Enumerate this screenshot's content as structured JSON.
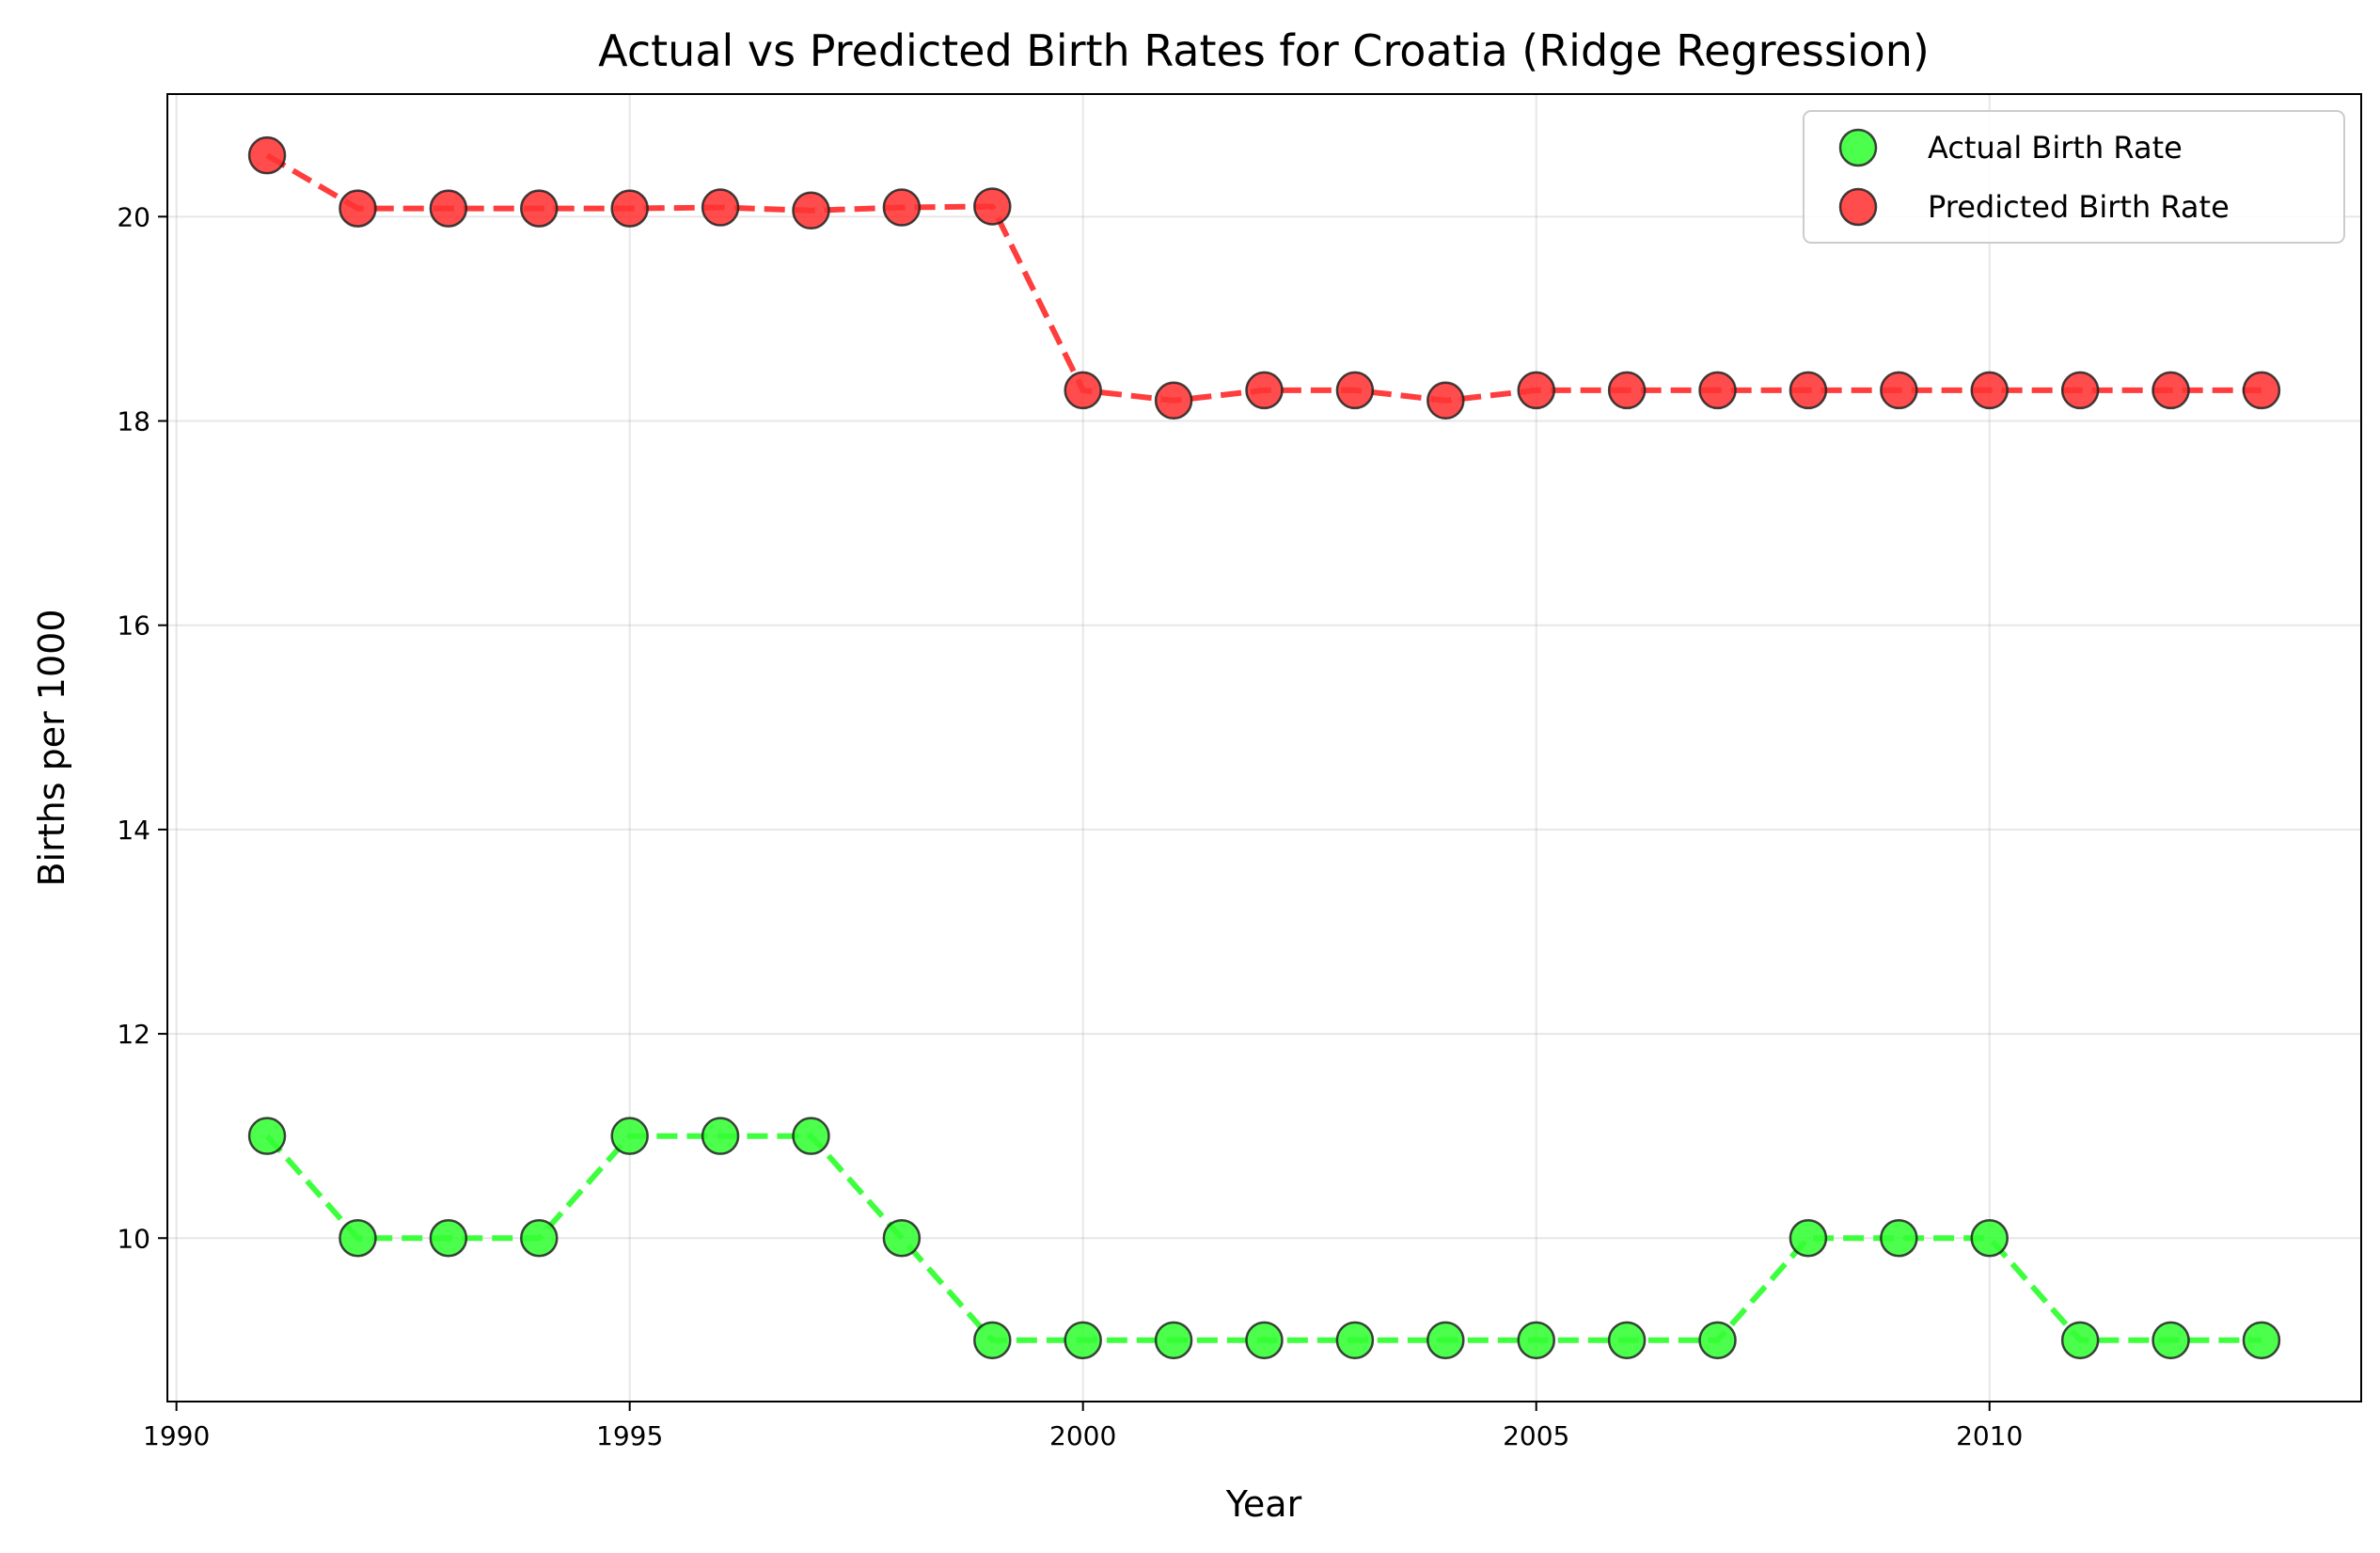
{
  "chart_data": {
    "type": "line",
    "title": "Actual vs Predicted Birth Rates for Croatia (Ridge Regression)",
    "xlabel": "Year",
    "ylabel": "Births per 1000",
    "xlim": [
      1989.9,
      2014.1
    ],
    "ylim": [
      8.4,
      21.2
    ],
    "xticks": [
      1990,
      1995,
      2000,
      2005,
      2010
    ],
    "yticks": [
      10,
      12,
      14,
      16,
      18,
      20
    ],
    "grid": true,
    "legend_position": "top-right",
    "x": [
      1991,
      1992,
      1993,
      1994,
      1995,
      1996,
      1997,
      1998,
      1999,
      2000,
      2001,
      2002,
      2003,
      2004,
      2005,
      2006,
      2007,
      2008,
      2009,
      2010,
      2011,
      2012,
      2013
    ],
    "series": [
      {
        "name": "Actual Birth Rate",
        "color": "#33ff33",
        "values": [
          11,
          10,
          10,
          10,
          11,
          11,
          11,
          10,
          9,
          9,
          9,
          9,
          9,
          9,
          9,
          9,
          9,
          10,
          10,
          10,
          9,
          9,
          9
        ]
      },
      {
        "name": "Predicted Birth Rate",
        "color": "#ff3333",
        "values": [
          20.6,
          20.08,
          20.08,
          20.08,
          20.08,
          20.09,
          20.06,
          20.09,
          20.1,
          18.3,
          18.2,
          18.3,
          18.3,
          18.2,
          18.3,
          18.3,
          18.3,
          18.3,
          18.3,
          18.3,
          18.3,
          18.3,
          18.3
        ]
      }
    ]
  }
}
